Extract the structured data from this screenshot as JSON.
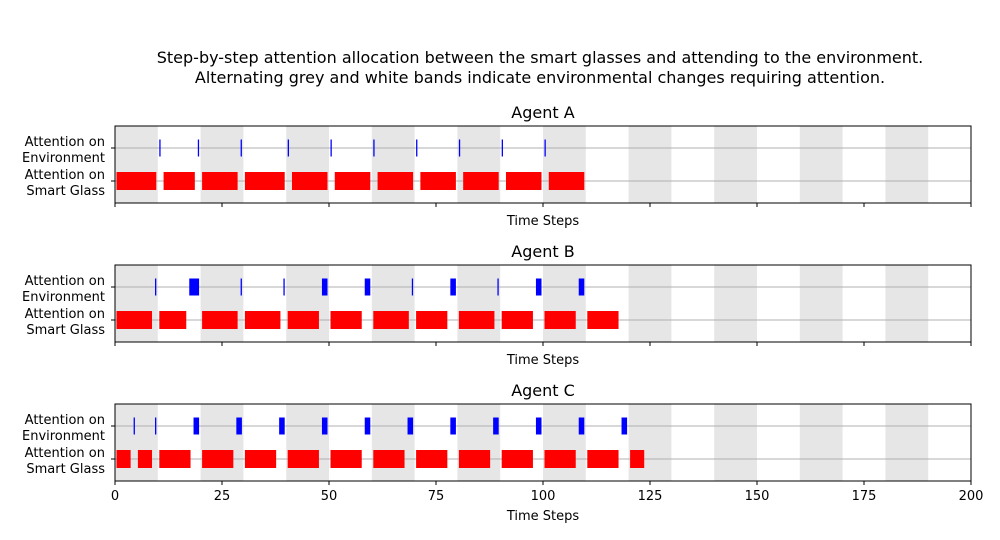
{
  "chart_data": {
    "type": "timeline",
    "title_line1": "Step-by-step attention allocation between the smart glasses and attending to the environment.",
    "title_line2": "Alternating grey and white bands indicate environmental changes requiring attention.",
    "xlabel": "Time Steps",
    "xlim": [
      0,
      200
    ],
    "x_ticks": [
      "0",
      "25",
      "50",
      "75",
      "100",
      "125",
      "150",
      "175",
      "200"
    ],
    "x_tick_values": [
      0,
      25,
      50,
      75,
      100,
      125,
      150,
      175,
      200
    ],
    "y_categories": [
      [
        "Attention on",
        "Environment"
      ],
      [
        "Attention on",
        "Smart Glass"
      ]
    ],
    "grey_bands": [
      [
        0,
        10
      ],
      [
        20,
        30
      ],
      [
        40,
        50
      ],
      [
        60,
        70
      ],
      [
        80,
        90
      ],
      [
        100,
        110
      ],
      [
        120,
        130
      ],
      [
        140,
        150
      ],
      [
        160,
        170
      ],
      [
        180,
        190
      ]
    ],
    "colors": {
      "smart_glass": "#ff0000",
      "environment": "#0000ff",
      "band": "#e6e6e6",
      "grid": "#b0b0b0"
    },
    "panels": [
      {
        "title": "Agent A",
        "show_tick_labels": false,
        "smart_glass": [
          [
            0,
            10
          ],
          [
            11,
            19
          ],
          [
            20,
            29
          ],
          [
            30,
            40
          ],
          [
            41,
            50
          ],
          [
            51,
            60
          ],
          [
            61,
            70
          ],
          [
            71,
            80
          ],
          [
            81,
            90
          ],
          [
            91,
            100
          ],
          [
            101,
            110
          ]
        ],
        "environment": [
          [
            10,
            11
          ],
          [
            19,
            20
          ],
          [
            29,
            30
          ],
          [
            40,
            41
          ],
          [
            50,
            51
          ],
          [
            60,
            61
          ],
          [
            70,
            71
          ],
          [
            80,
            81
          ],
          [
            90,
            91
          ],
          [
            100,
            101
          ]
        ]
      },
      {
        "title": "Agent B",
        "show_tick_labels": false,
        "smart_glass": [
          [
            0,
            9
          ],
          [
            10,
            17
          ],
          [
            20,
            29
          ],
          [
            30,
            39
          ],
          [
            40,
            48
          ],
          [
            50,
            58
          ],
          [
            60,
            69
          ],
          [
            70,
            78
          ],
          [
            80,
            89
          ],
          [
            90,
            98
          ],
          [
            100,
            108
          ],
          [
            110,
            118
          ]
        ],
        "environment": [
          [
            9,
            10
          ],
          [
            17,
            20
          ],
          [
            29,
            30
          ],
          [
            39,
            40
          ],
          [
            48,
            50
          ],
          [
            58,
            60
          ],
          [
            69,
            70
          ],
          [
            78,
            80
          ],
          [
            89,
            90
          ],
          [
            98,
            100
          ],
          [
            108,
            110
          ]
        ]
      },
      {
        "title": "Agent C",
        "show_tick_labels": true,
        "smart_glass": [
          [
            0,
            4
          ],
          [
            5,
            9
          ],
          [
            10,
            18
          ],
          [
            20,
            28
          ],
          [
            30,
            38
          ],
          [
            40,
            48
          ],
          [
            50,
            58
          ],
          [
            60,
            68
          ],
          [
            70,
            78
          ],
          [
            80,
            88
          ],
          [
            90,
            98
          ],
          [
            100,
            108
          ],
          [
            110,
            118
          ],
          [
            120,
            124
          ]
        ],
        "environment": [
          [
            4,
            5
          ],
          [
            9,
            10
          ],
          [
            18,
            20
          ],
          [
            28,
            30
          ],
          [
            38,
            40
          ],
          [
            48,
            50
          ],
          [
            58,
            60
          ],
          [
            68,
            70
          ],
          [
            78,
            80
          ],
          [
            88,
            90
          ],
          [
            98,
            100
          ],
          [
            108,
            110
          ],
          [
            118,
            120
          ]
        ]
      }
    ]
  }
}
